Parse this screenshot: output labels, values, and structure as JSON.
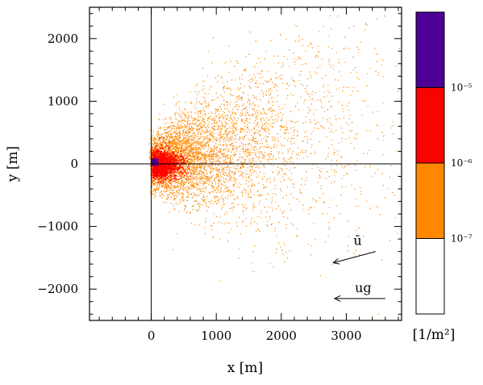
{
  "chart_data": {
    "type": "heatmap",
    "title": "",
    "xlabel": "x [m]",
    "ylabel": "y [m]",
    "xlim": [
      -950,
      3850
    ],
    "ylim": [
      -2500,
      2500
    ],
    "x_ticks": [
      0,
      1000,
      2000,
      3000
    ],
    "x_tick_labels": [
      "0",
      "1000",
      "2000",
      "3000"
    ],
    "y_ticks": [
      -2000,
      -1000,
      0,
      1000,
      2000
    ],
    "y_tick_labels": [
      "−2000",
      "−1000",
      "0",
      "1000",
      "2000"
    ],
    "crosshair": {
      "x": 0,
      "y": 0
    },
    "source": {
      "x": 60,
      "y": 20
    },
    "density_regions": [
      {
        "level": "above 1e-5",
        "color": "#4b0096",
        "x_range": [
          30,
          120
        ],
        "y_range": [
          -40,
          70
        ]
      },
      {
        "level": "1e-6 to 1e-5",
        "color": "#ff0000",
        "x_range": [
          0,
          600
        ],
        "y_range": [
          -300,
          300
        ]
      },
      {
        "level": "1e-7 to 1e-6",
        "color": "#ff8800",
        "x_range": [
          0,
          3850
        ],
        "y_range": [
          -500,
          2300
        ]
      }
    ],
    "colorbar": {
      "scale": "log",
      "unit": "[1/m²]",
      "tick_labels": [
        "10⁻⁷",
        "10⁻⁶",
        "10⁻⁵"
      ],
      "bands": [
        {
          "color": "#ffffff",
          "label": "below 1e-7"
        },
        {
          "color": "#ff8800",
          "label": "1e-7 to 1e-6"
        },
        {
          "color": "#ff0000",
          "label": "1e-6 to 1e-5"
        },
        {
          "color": "#4b0096",
          "label": "above 1e-5"
        }
      ]
    },
    "vectors": [
      {
        "label": "ū",
        "from": [
          3450,
          -1400
        ],
        "to": [
          2800,
          -1580
        ]
      },
      {
        "label": "uɡ",
        "from": [
          3600,
          -2150
        ],
        "to": [
          2820,
          -2150
        ]
      }
    ],
    "grid": false,
    "legend": "colorbar-right"
  }
}
